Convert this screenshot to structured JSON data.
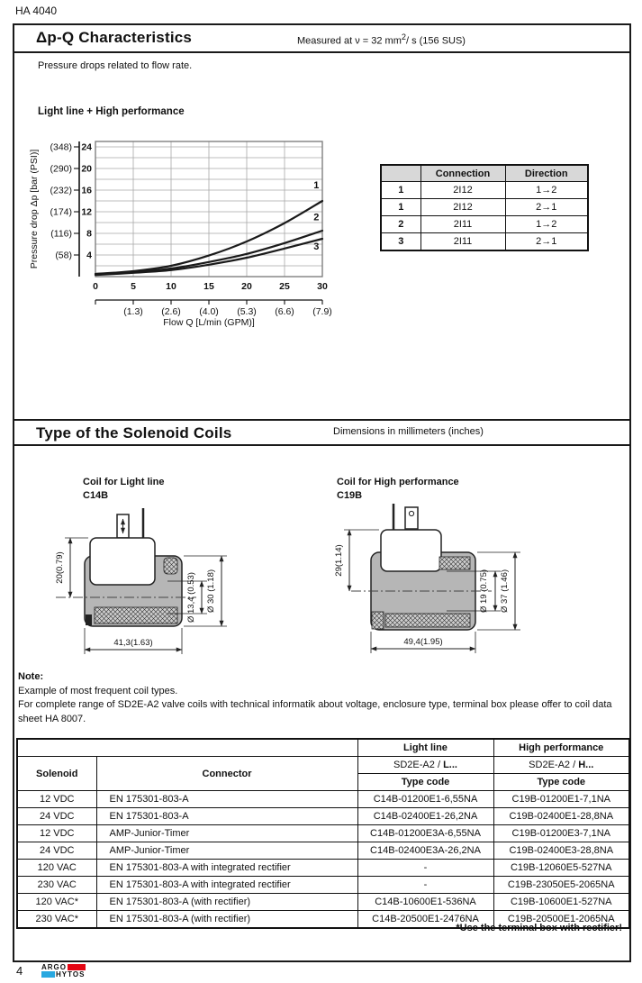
{
  "page": {
    "doc_code": "HA 4040",
    "page_number": "4",
    "brand": {
      "line1": "ARGO",
      "line2": "HYTOS",
      "red": "#e30613",
      "cyan": "#29a8e0"
    }
  },
  "section1": {
    "title": "Δp-Q Characteristics",
    "measured_prefix": "Measured at  ν = 32 mm",
    "measured_sup": "2",
    "measured_suffix": "/ s (156 SUS)",
    "intro": "Pressure drops related to flow rate.",
    "chart_heading": "Light line  + High performance"
  },
  "chart_data": {
    "type": "line",
    "title": "Light line + High performance",
    "xlabel": "Flow Q [L/min (GPM)]",
    "ylabel": "Pressure drop Δp  [bar (PSI)]",
    "xlim": [
      0,
      30
    ],
    "ylim": [
      0,
      25
    ],
    "grid": true,
    "x_ticks": [
      0,
      5,
      10,
      15,
      20,
      25,
      30
    ],
    "x_ticks_gpm": [
      "(1.3)",
      "(2.6)",
      "(4.0)",
      "(5.3)",
      "(6.6)",
      "(7.9)"
    ],
    "y_ticks": [
      4,
      8,
      12,
      16,
      20,
      24
    ],
    "y_ticks_psi": [
      "(58)",
      "(116)",
      "(174)",
      "(232)",
      "(290)",
      "(348)"
    ],
    "x": [
      0,
      5,
      10,
      15,
      20,
      25,
      30
    ],
    "series": [
      {
        "name": "1",
        "values": [
          0.5,
          1.0,
          2.0,
          3.9,
          6.5,
          9.9,
          14.0
        ]
      },
      {
        "name": "2",
        "values": [
          0.4,
          0.8,
          1.5,
          2.7,
          4.2,
          6.2,
          8.5
        ]
      },
      {
        "name": "3",
        "values": [
          0.3,
          0.7,
          1.2,
          2.2,
          3.5,
          5.2,
          7.0
        ]
      }
    ]
  },
  "connection_table": {
    "headers": [
      "",
      "Connection",
      "Direction"
    ],
    "rows": [
      [
        "1",
        "2I12",
        "1→2"
      ],
      [
        "1",
        "2I12",
        "2→1"
      ],
      [
        "2",
        "2I11",
        "1→2"
      ],
      [
        "3",
        "2I11",
        "2→1"
      ]
    ]
  },
  "section2": {
    "title": "Type of the Solenoid Coils",
    "subtitle": "Dimensions in millimeters (inches)",
    "coil_left": {
      "caption1": "Coil for Light line",
      "caption2": "C14B",
      "dim_height": "20(0.79)",
      "dim_width": "41,3(1.63)",
      "dim_inner": "Ø 13,4 (0.53)",
      "dim_outer": "Ø 30 (1.18)"
    },
    "coil_right": {
      "caption1": "Coil for High performance",
      "caption2": "C19B",
      "dim_height": "29(1.14)",
      "dim_width": "49,4(1.95)",
      "dim_inner": "Ø 19 (0.75)",
      "dim_outer": "Ø 37 (1.46)"
    }
  },
  "note": {
    "label": "Note:",
    "line1": "Example of most frequent coil types.",
    "line2": "For complete range of SD2E-A2 valve coils with technical informatik about voltage, enclosure type, terminal box please offer to coil data sheet HA 8007."
  },
  "coil_table": {
    "col_solenoid": "Solenoid",
    "col_connector": "Connector",
    "group_light": "Light line",
    "group_high": "High performance",
    "sub_light_prefix": "SD2E-A2 / ",
    "sub_light_bold": "L...",
    "sub_high_prefix": "SD2E-A2 / ",
    "sub_high_bold": "H...",
    "type_code": "Type code",
    "rows": [
      {
        "solenoid": "12 VDC",
        "connector": "EN 175301-803-A",
        "light": "C14B-01200E1-6,55NA",
        "high": "C19B-01200E1-7,1NA"
      },
      {
        "solenoid": "24 VDC",
        "connector": "EN 175301-803-A",
        "light": "C14B-02400E1-26,2NA",
        "high": "C19B-02400E1-28,8NA"
      },
      {
        "solenoid": "12 VDC",
        "connector": "AMP-Junior-Timer",
        "light": "C14B-01200E3A-6,55NA",
        "high": "C19B-01200E3-7,1NA"
      },
      {
        "solenoid": "24 VDC",
        "connector": "AMP-Junior-Timer",
        "light": "C14B-02400E3A-26,2NA",
        "high": "C19B-02400E3-28,8NA"
      },
      {
        "solenoid": "120 VAC",
        "connector": "EN 175301-803-A with integrated rectifier",
        "light": "-",
        "high": "C19B-12060E5-527NA"
      },
      {
        "solenoid": "230 VAC",
        "connector": "EN 175301-803-A with integrated rectifier",
        "light": "-",
        "high": "C19B-23050E5-2065NA"
      },
      {
        "solenoid": "120 VAC*",
        "connector": "EN 175301-803-A (with rectifier)",
        "light": "C14B-10600E1-536NA",
        "high": "C19B-10600E1-527NA"
      },
      {
        "solenoid": "230 VAC*",
        "connector": "EN 175301-803-A (with rectifier)",
        "light": "C14B-20500E1-2476NA",
        "high": "C19B-20500E1-2065NA"
      }
    ],
    "footnote": "*Use the terminal box with rectifier!"
  }
}
